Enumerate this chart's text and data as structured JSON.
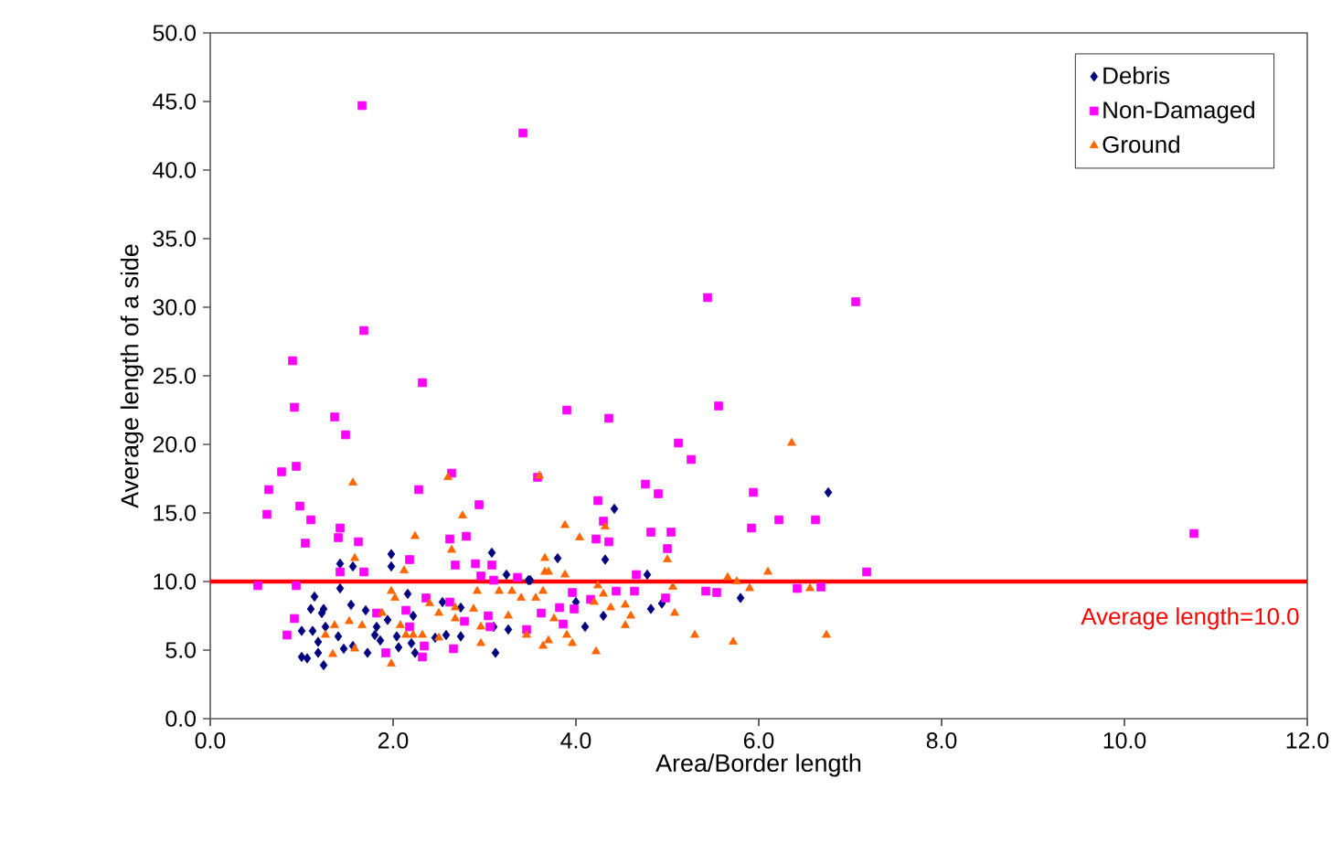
{
  "chart_data": {
    "type": "scatter",
    "xlabel": "Area/Border length",
    "ylabel": "Average length of a side",
    "xlim": [
      0,
      12
    ],
    "ylim": [
      0,
      50
    ],
    "xticks": [
      {
        "value": 0,
        "label": "0.0"
      },
      {
        "value": 2,
        "label": "2.0"
      },
      {
        "value": 4,
        "label": "4.0"
      },
      {
        "value": 6,
        "label": "6.0"
      },
      {
        "value": 8,
        "label": "8.0"
      },
      {
        "value": 10,
        "label": "10.0"
      },
      {
        "value": 12,
        "label": "12.0"
      }
    ],
    "yticks": [
      {
        "value": 0,
        "label": "0.0"
      },
      {
        "value": 5,
        "label": "5.0"
      },
      {
        "value": 10,
        "label": "10.0"
      },
      {
        "value": 15,
        "label": "15.0"
      },
      {
        "value": 20,
        "label": "20.0"
      },
      {
        "value": 25,
        "label": "25.0"
      },
      {
        "value": 30,
        "label": "30.0"
      },
      {
        "value": 35,
        "label": "35.0"
      },
      {
        "value": 40,
        "label": "40.0"
      },
      {
        "value": 45,
        "label": "45.0"
      },
      {
        "value": 50,
        "label": "50.0"
      }
    ],
    "legend": "top right",
    "ref_lines": [
      {
        "axis": "y",
        "value": 10,
        "label": "Average length=10.0",
        "color": "#ff0000"
      }
    ],
    "series": [
      {
        "name": "Debris",
        "color": "#000080",
        "marker": "diamond",
        "x": [
          1.98,
          1.98,
          3.08,
          1.42,
          1.56,
          1.42,
          1.14,
          1.1,
          1.24,
          1.22,
          1.54,
          1.7,
          1.0,
          1.12,
          1.26,
          1.18,
          1.4,
          1.0,
          1.06,
          1.24,
          1.18,
          1.46,
          1.56,
          1.72,
          1.8,
          1.86,
          2.04,
          1.94,
          1.82,
          2.16,
          2.2,
          2.24,
          2.06,
          2.54,
          2.46,
          2.58,
          2.74,
          3.1,
          3.12,
          3.24,
          3.48,
          3.26,
          2.74,
          2.22,
          4.42,
          6.76,
          3.8,
          4.32,
          4.78,
          5.8,
          4.82,
          4.94,
          4.0,
          4.3,
          4.1,
          3.5
        ],
        "values": [
          12.0,
          11.1,
          12.1,
          11.3,
          11.1,
          9.5,
          8.9,
          8.0,
          8.0,
          7.7,
          8.3,
          7.9,
          6.4,
          6.4,
          6.7,
          5.6,
          6.0,
          4.5,
          4.4,
          3.9,
          4.8,
          5.1,
          5.3,
          4.8,
          6.1,
          5.7,
          6.0,
          7.2,
          6.7,
          9.1,
          5.5,
          4.8,
          5.2,
          8.5,
          5.9,
          6.1,
          8.1,
          6.7,
          4.8,
          10.5,
          10.1,
          6.5,
          6.0,
          7.5,
          15.3,
          16.5,
          11.7,
          11.6,
          10.5,
          8.8,
          8.0,
          8.4,
          8.5,
          7.5,
          6.7,
          10.1
        ]
      },
      {
        "name": "Non-Damaged",
        "color": "#ff00ff",
        "marker": "square",
        "x": [
          1.66,
          3.42,
          5.44,
          1.68,
          0.9,
          2.32,
          7.06,
          10.76,
          0.92,
          1.36,
          1.48,
          0.94,
          0.78,
          0.64,
          0.62,
          0.98,
          1.1,
          1.04,
          1.42,
          1.4,
          1.62,
          2.28,
          2.64,
          2.94,
          2.8,
          2.62,
          2.18,
          2.68,
          1.68,
          1.42,
          0.52,
          0.94,
          0.92,
          0.84,
          3.58,
          2.9,
          3.08,
          2.96,
          1.82,
          2.14,
          2.36,
          2.62,
          2.18,
          2.34,
          1.92,
          2.32,
          2.66,
          2.78,
          3.06,
          3.04,
          3.36,
          3.62,
          3.46,
          3.1,
          3.9,
          4.36,
          5.56,
          5.12,
          5.26,
          4.76,
          4.9,
          5.94,
          4.24,
          4.3,
          4.22,
          4.36,
          4.82,
          5.04,
          5.0,
          5.92,
          6.22,
          6.62,
          7.18,
          4.66,
          4.44,
          4.64,
          4.98,
          5.42,
          5.54,
          6.42,
          6.68,
          3.96,
          4.16,
          3.82,
          3.98,
          3.86
        ],
        "values": [
          44.7,
          42.7,
          30.7,
          28.3,
          26.1,
          24.5,
          30.4,
          13.5,
          22.7,
          22.0,
          20.7,
          18.4,
          18.0,
          16.7,
          14.9,
          15.5,
          14.5,
          12.8,
          13.9,
          13.2,
          12.9,
          16.7,
          17.9,
          15.6,
          13.3,
          13.1,
          11.6,
          11.2,
          10.7,
          10.7,
          9.7,
          9.7,
          7.3,
          6.1,
          17.6,
          11.3,
          11.2,
          10.4,
          7.7,
          7.9,
          8.8,
          8.5,
          6.7,
          5.3,
          4.8,
          4.5,
          5.1,
          7.1,
          6.7,
          7.5,
          10.3,
          7.7,
          6.5,
          10.1,
          22.5,
          21.9,
          22.8,
          20.1,
          18.9,
          17.1,
          16.4,
          16.5,
          15.9,
          14.4,
          13.1,
          12.9,
          13.6,
          13.6,
          12.4,
          13.9,
          14.5,
          14.5,
          10.7,
          10.5,
          9.3,
          9.3,
          8.8,
          9.3,
          9.2,
          9.5,
          9.6,
          9.2,
          8.7,
          8.1,
          8.0,
          6.9
        ]
      },
      {
        "name": "Ground",
        "color": "#ff6600",
        "marker": "triangle",
        "x": [
          1.56,
          2.6,
          2.76,
          2.24,
          1.58,
          2.12,
          2.64,
          3.66,
          1.98,
          2.02,
          1.36,
          1.52,
          1.66,
          1.26,
          1.34,
          1.58,
          1.98,
          1.88,
          2.08,
          2.22,
          2.32,
          2.5,
          2.4,
          2.5,
          2.68,
          2.88,
          2.96,
          2.96,
          2.92,
          3.16,
          3.26,
          3.3,
          3.4,
          3.46,
          3.56,
          3.64,
          3.66,
          2.14,
          2.68,
          6.36,
          3.6,
          3.88,
          4.04,
          4.32,
          5.0,
          3.7,
          3.88,
          6.1,
          5.66,
          5.76,
          5.9,
          6.56,
          5.06,
          4.24,
          4.3,
          4.2,
          4.54,
          4.38,
          4.6,
          4.54,
          5.08,
          5.3,
          5.72,
          6.74,
          4.22,
          3.9,
          3.96,
          3.7,
          3.64,
          3.76
        ],
        "values": [
          17.2,
          17.6,
          14.8,
          13.3,
          11.7,
          10.8,
          12.3,
          11.7,
          9.3,
          8.8,
          6.8,
          7.1,
          6.8,
          6.1,
          4.7,
          5.1,
          4.0,
          7.7,
          6.8,
          6.1,
          6.1,
          5.9,
          8.4,
          7.7,
          7.3,
          8.0,
          5.5,
          6.7,
          9.3,
          9.3,
          7.5,
          9.3,
          8.8,
          6.1,
          8.8,
          9.3,
          10.7,
          6.1,
          8.1,
          20.1,
          17.7,
          14.1,
          13.2,
          14.0,
          11.6,
          10.7,
          10.5,
          10.7,
          10.3,
          10.0,
          9.5,
          9.5,
          9.6,
          9.7,
          9.1,
          8.5,
          8.3,
          8.1,
          7.5,
          6.8,
          7.7,
          6.1,
          5.6,
          6.1,
          4.9,
          6.1,
          5.5,
          5.7,
          5.3,
          7.3
        ]
      }
    ]
  }
}
